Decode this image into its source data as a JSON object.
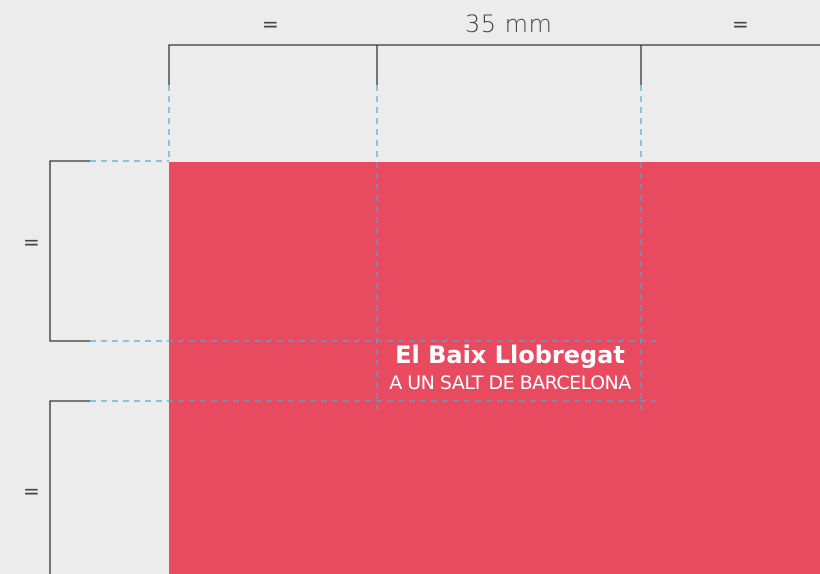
{
  "dimensions": {
    "top_left": "=",
    "top_middle": "35 mm",
    "top_right": "=",
    "left_upper": "=",
    "left_lower": "="
  },
  "logo": {
    "title": "El Baix Llobregat",
    "subtitle": "A UN SALT DE BARCELONA"
  },
  "colors": {
    "panel": "#e84a5f",
    "guide": "#4aa8d8",
    "dimension_line": "#333333",
    "background": "#ececec"
  }
}
